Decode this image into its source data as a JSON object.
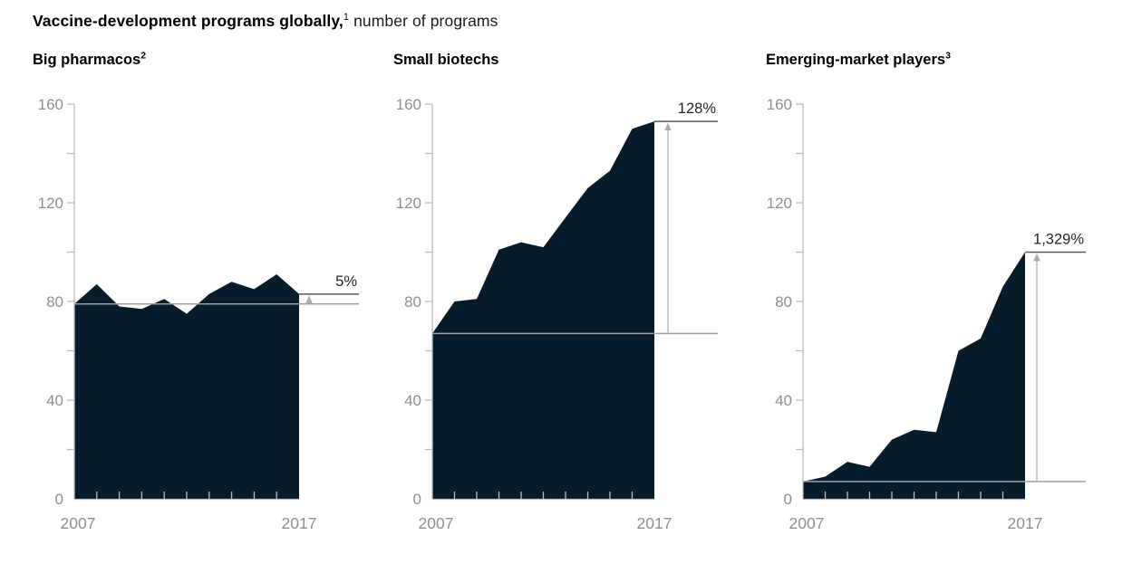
{
  "page_title": {
    "bold": "Vaccine-development programs globally,",
    "superscript": "1",
    "rest": " number of programs"
  },
  "y_axis": {
    "min": 0,
    "max": 160,
    "tick_step": 20,
    "label_step": 40,
    "labels": [
      "160",
      "120",
      "80",
      "40",
      "0"
    ]
  },
  "x_axis": {
    "first_label": "2007",
    "last_label": "2017"
  },
  "colors": {
    "area_fill": "#071c2b",
    "axis_line": "#b9bdbf",
    "tick_label": "#8c9092",
    "baseline_line": "#9aa0a2",
    "end_line": "#55585a",
    "arrow": "#a9adaf",
    "percent_label": "#1f2122",
    "title_text": "#000000"
  },
  "chart_data": [
    {
      "type": "area",
      "title": "Big pharmacos",
      "title_superscript": "2",
      "x": [
        2007,
        2008,
        2009,
        2010,
        2011,
        2012,
        2013,
        2014,
        2015,
        2016,
        2017
      ],
      "values": [
        79,
        87,
        78,
        77,
        81,
        75,
        83,
        88,
        85,
        91,
        83
      ],
      "start_value": 79,
      "end_value": 83,
      "change_label": "5%",
      "xlabel_start": "2007",
      "xlabel_end": "2017",
      "ylim": [
        0,
        160
      ]
    },
    {
      "type": "area",
      "title": "Small biotechs",
      "title_superscript": "",
      "x": [
        2007,
        2008,
        2009,
        2010,
        2011,
        2012,
        2013,
        2014,
        2015,
        2016,
        2017
      ],
      "values": [
        67,
        80,
        81,
        101,
        104,
        102,
        114,
        126,
        133,
        150,
        153
      ],
      "start_value": 67,
      "end_value": 153,
      "change_label": "128%",
      "xlabel_start": "2007",
      "xlabel_end": "2017",
      "ylim": [
        0,
        160
      ]
    },
    {
      "type": "area",
      "title": "Emerging-market players",
      "title_superscript": "3",
      "x": [
        2007,
        2008,
        2009,
        2010,
        2011,
        2012,
        2013,
        2014,
        2015,
        2016,
        2017
      ],
      "values": [
        7,
        9,
        15,
        13,
        24,
        28,
        27,
        60,
        65,
        86,
        100
      ],
      "start_value": 7,
      "end_value": 100,
      "change_label": "1,329%",
      "xlabel_start": "2007",
      "xlabel_end": "2017",
      "ylim": [
        0,
        160
      ]
    }
  ]
}
